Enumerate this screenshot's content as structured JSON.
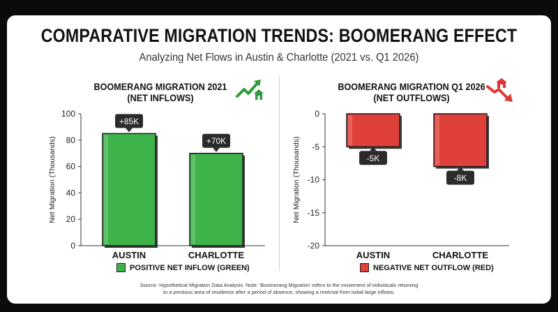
{
  "title": "COMPARATIVE MIGRATION TRENDS: BOOMERANG EFFECT",
  "subtitle": "Analyzing Net Flows in Austin & Charlotte (2021 vs. Q1 2026)",
  "source_line1": "Source: Hypothetical Migration Data Analysis. Note: 'Boomerang Migration' refers to the movement of individuals returning",
  "source_line2": "to a previous area of residence after a period of absence, showing a reversal from initial large inflows.",
  "left_panel": {
    "title_line1": "BOOMERANG MIGRATION 2021",
    "title_line2": "(NET INFLOWS)",
    "legend": "POSITIVE NET INFLOW (GREEN)",
    "icon": "trend-up-house-icon"
  },
  "right_panel": {
    "title_line1": "BOOMERANG MIGRATION Q1 2026",
    "title_line2": "(NET OUTFLOWS)",
    "legend": "NEGATIVE NET OUTFLOW (RED)",
    "icon": "trend-down-house-icon"
  },
  "colors": {
    "positive": "#3db34a",
    "negative": "#e0403a",
    "label_bg": "#2b2b2b"
  },
  "chart_data": [
    {
      "type": "bar",
      "title": "BOOMERANG MIGRATION 2021 (NET INFLOWS)",
      "categories": [
        "AUSTIN",
        "CHARLOTTE"
      ],
      "values": [
        85,
        70
      ],
      "data_labels": [
        "+85K",
        "+70K"
      ],
      "ylabel": "Net Migration (Thousands)",
      "ylim": [
        0,
        100
      ],
      "yticks": [
        0,
        20,
        40,
        60,
        80,
        100
      ],
      "grid": false,
      "legend": "bottom"
    },
    {
      "type": "bar",
      "title": "BOOMERANG MIGRATION Q1 2026 (NET OUTFLOWS)",
      "categories": [
        "AUSTIN",
        "CHARLOTTE"
      ],
      "values": [
        -5,
        -8
      ],
      "data_labels": [
        "-5K",
        "-8K"
      ],
      "ylabel": "Net Migration (Thousands)",
      "ylim": [
        -20,
        0
      ],
      "yticks": [
        0,
        -5,
        -10,
        -15,
        -20
      ],
      "grid": false,
      "legend": "bottom"
    }
  ]
}
